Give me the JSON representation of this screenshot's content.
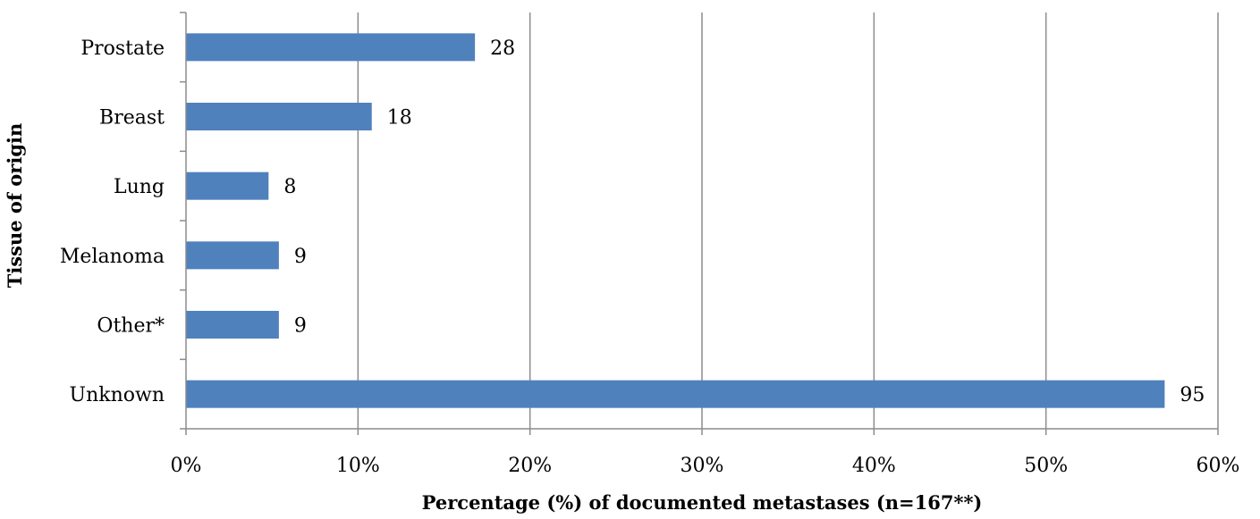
{
  "chart_data": {
    "type": "bar",
    "orientation": "horizontal",
    "categories": [
      "Prostate",
      "Breast",
      "Lung",
      "Melanoma",
      "Other*",
      "Unknown"
    ],
    "values": [
      16.8,
      10.8,
      4.8,
      5.4,
      5.4,
      56.9
    ],
    "counts": [
      28,
      18,
      8,
      9,
      9,
      95
    ],
    "data_labels": [
      "28",
      "18",
      "8",
      "9",
      "9",
      "95"
    ],
    "xlabel": "Percentage (%) of documented metastases (n=167**)",
    "ylabel": "Tissue of origin",
    "xlim": [
      0,
      60
    ],
    "x_ticks": [
      0,
      10,
      20,
      30,
      40,
      50,
      60
    ],
    "x_tick_labels": [
      "0%",
      "10%",
      "20%",
      "30%",
      "40%",
      "50%",
      "60%"
    ],
    "grid": "vertical",
    "legend": "none",
    "colors": {
      "bar": "#4f81bd",
      "grid": "#8c8c8c"
    }
  }
}
